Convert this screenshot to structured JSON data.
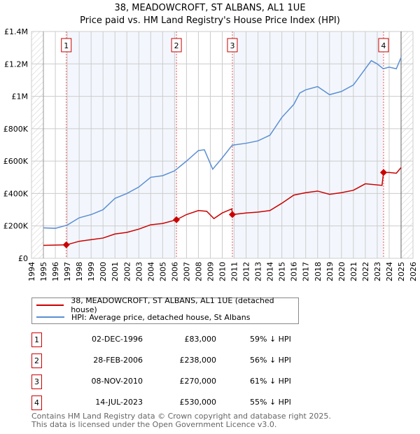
{
  "title": "38, MEADOWCROFT, ST ALBANS, AL1 1UE",
  "subtitle": "Price paid vs. HM Land Registry's House Price Index (HPI)",
  "chart_data": {
    "type": "line",
    "xlim": [
      1994,
      2026
    ],
    "ylim": [
      0,
      1400000
    ],
    "x_ticks": [
      "1994",
      "1995",
      "1996",
      "1997",
      "1998",
      "1999",
      "2000",
      "2001",
      "2002",
      "2003",
      "2004",
      "2005",
      "2006",
      "2007",
      "2008",
      "2009",
      "2010",
      "2011",
      "2012",
      "2013",
      "2014",
      "2015",
      "2016",
      "2017",
      "2018",
      "2019",
      "2020",
      "2021",
      "2022",
      "2023",
      "2024",
      "2025",
      "2026"
    ],
    "y_ticks": [
      {
        "v": 0,
        "label": "£0"
      },
      {
        "v": 200000,
        "label": "£200K"
      },
      {
        "v": 400000,
        "label": "£400K"
      },
      {
        "v": 600000,
        "label": "£600K"
      },
      {
        "v": 800000,
        "label": "£800K"
      },
      {
        "v": 1000000,
        "label": "£1M"
      },
      {
        "v": 1200000,
        "label": "£1.2M"
      },
      {
        "v": 1400000,
        "label": "£1.4M"
      }
    ],
    "series": [
      {
        "name": "38, MEADOWCROFT, ST ALBANS, AL1 1UE (detached house)",
        "color": "#cc0000",
        "x": [
          1995,
          1996.92,
          1998,
          1999,
          2000,
          2001,
          2002,
          2003,
          2004,
          2005,
          2006.16,
          2007,
          2008,
          2008.7,
          2009.3,
          2010,
          2010.8,
          2010.85,
          2012,
          2013,
          2014,
          2015,
          2016,
          2017,
          2018,
          2019,
          2020,
          2021,
          2022,
          2023.4,
          2023.53,
          2024,
          2024.6,
          2025
        ],
        "y": [
          80000,
          83000,
          105000,
          115000,
          125000,
          150000,
          160000,
          180000,
          207000,
          215000,
          238000,
          270000,
          295000,
          290000,
          245000,
          280000,
          305000,
          270000,
          280000,
          285000,
          295000,
          340000,
          390000,
          405000,
          415000,
          395000,
          405000,
          420000,
          460000,
          450000,
          530000,
          530000,
          525000,
          560000
        ]
      },
      {
        "name": "HPI: Average price, detached house, St Albans",
        "color": "#5b8fd4",
        "x": [
          1995,
          1996,
          1997,
          1998,
          1999,
          2000,
          2001,
          2002,
          2003,
          2004,
          2005,
          2006,
          2007,
          2008,
          2008.5,
          2009.2,
          2010,
          2010.8,
          2011,
          2012,
          2013,
          2014,
          2015,
          2016,
          2016.5,
          2017,
          2018,
          2019,
          2020,
          2021,
          2022,
          2022.5,
          2023,
          2023.5,
          2024,
          2024.6,
          2025
        ],
        "y": [
          188000,
          185000,
          205000,
          250000,
          270000,
          300000,
          370000,
          400000,
          440000,
          500000,
          510000,
          540000,
          600000,
          665000,
          670000,
          550000,
          620000,
          695000,
          700000,
          710000,
          725000,
          760000,
          870000,
          950000,
          1020000,
          1040000,
          1060000,
          1010000,
          1030000,
          1070000,
          1170000,
          1220000,
          1200000,
          1170000,
          1180000,
          1170000,
          1240000
        ]
      }
    ],
    "sales": [
      {
        "n": "1",
        "x": 1996.92,
        "y": 83000,
        "date": "02-DEC-1996",
        "price": "£83,000",
        "hpi": "59% ↓ HPI"
      },
      {
        "n": "2",
        "x": 2006.16,
        "y": 238000,
        "date": "28-FEB-2006",
        "price": "£238,000",
        "hpi": "56% ↓ HPI"
      },
      {
        "n": "3",
        "x": 2010.85,
        "y": 270000,
        "date": "08-NOV-2010",
        "price": "£270,000",
        "hpi": "61% ↓ HPI"
      },
      {
        "n": "4",
        "x": 2023.53,
        "y": 530000,
        "date": "14-JUL-2023",
        "price": "£530,000",
        "hpi": "55% ↓ HPI"
      }
    ],
    "data_start": 1995,
    "data_end": 2025
  },
  "legend": {
    "red": "38, MEADOWCROFT, ST ALBANS, AL1 1UE (detached house)",
    "blue": "HPI: Average price, detached house, St Albans"
  },
  "footer": {
    "line1": "Contains HM Land Registry data © Crown copyright and database right 2025.",
    "line2": "This data is licensed under the Open Government Licence v3.0."
  }
}
